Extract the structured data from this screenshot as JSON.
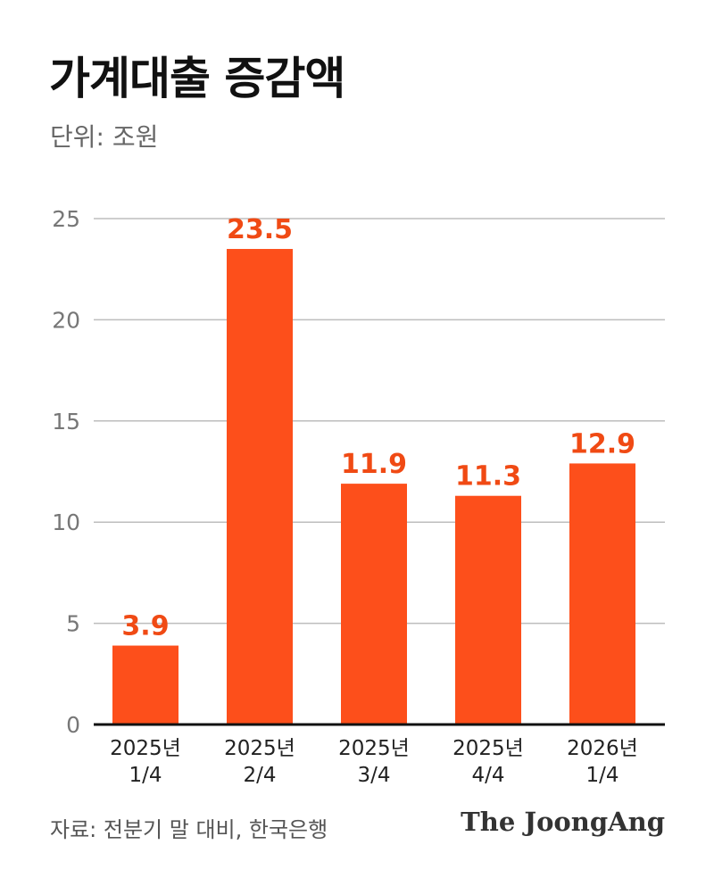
{
  "chart_data": {
    "type": "bar",
    "title": "가계대출 증감액",
    "subtitle": "단위: 조원",
    "categories": [
      [
        "2025년",
        "1/4"
      ],
      [
        "2025년",
        "2/4"
      ],
      [
        "2025년",
        "3/4"
      ],
      [
        "2025년",
        "4/4"
      ],
      [
        "2026년",
        "1/4"
      ]
    ],
    "values": [
      3.9,
      23.5,
      11.9,
      11.3,
      12.9
    ],
    "value_labels": [
      "3.9",
      "23.5",
      "11.9",
      "11.3",
      "12.9"
    ],
    "ylim": [
      0,
      25
    ],
    "yticks": [
      0,
      5,
      10,
      15,
      20,
      25
    ],
    "grid": true,
    "xlabel": "",
    "ylabel": "",
    "bar_color": "#fd4f1b",
    "label_color": "#f04a14"
  },
  "footer": {
    "source": "자료: 전분기 말 대비, 한국은행",
    "logo": "The JoongAng"
  }
}
